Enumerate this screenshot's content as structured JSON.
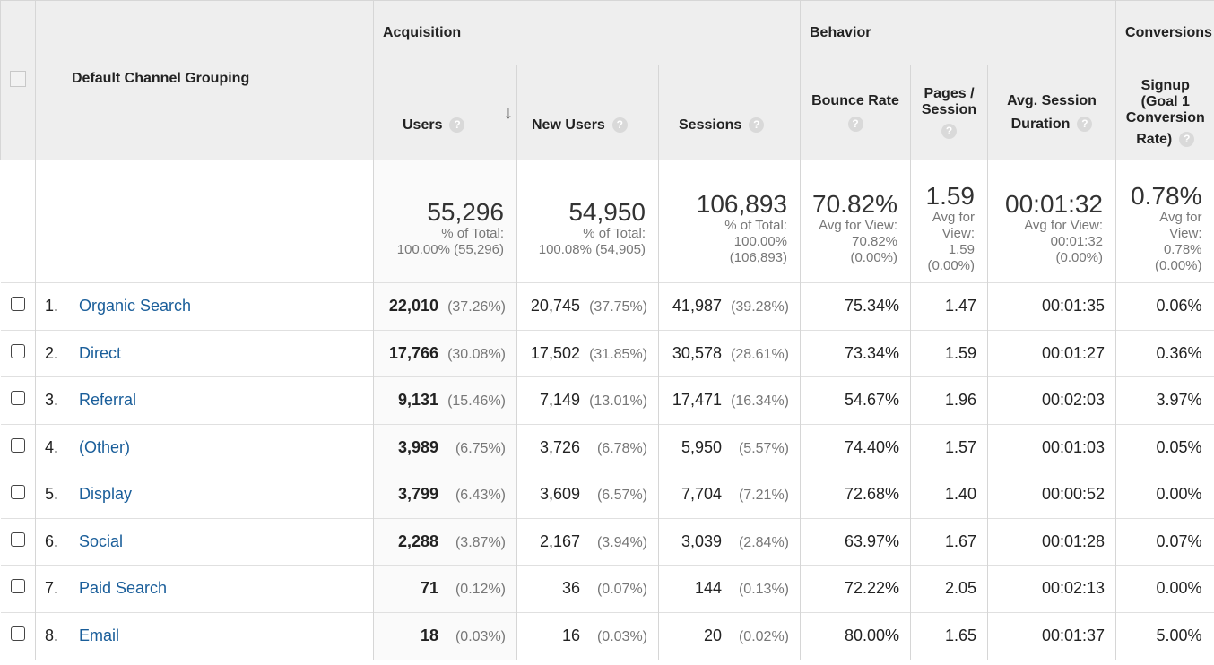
{
  "header": {
    "dimension": "Default Channel Grouping",
    "groups": {
      "acquisition": "Acquisition",
      "behavior": "Behavior",
      "conversions": "Conversions"
    },
    "columns": {
      "users": "Users",
      "new_users": "New Users",
      "sessions": "Sessions",
      "bounce_rate": "Bounce Rate",
      "pages_session_1": "Pages /",
      "pages_session_2": "Session",
      "avg_duration_1": "Avg. Session",
      "avg_duration_2": "Duration",
      "signup_1": "Signup",
      "signup_2": "(Goal 1",
      "signup_3": "Conversion",
      "signup_4": "Rate)"
    },
    "help_icon": "?",
    "sort_icon": "↓"
  },
  "totals": {
    "users": {
      "value": "55,296",
      "l1": "% of Total:",
      "l2": "100.00% (55,296)"
    },
    "new_users": {
      "value": "54,950",
      "l1": "% of Total:",
      "l2": "100.08% (54,905)"
    },
    "sessions": {
      "value": "106,893",
      "l1": "% of Total:",
      "l2": "100.00%",
      "l3": "(106,893)"
    },
    "bounce_rate": {
      "value": "70.82%",
      "l1": "Avg for View:",
      "l2": "70.82%",
      "l3": "(0.00%)"
    },
    "pages_session": {
      "value": "1.59",
      "l1": "Avg for",
      "l2": "View:",
      "l3": "1.59",
      "l4": "(0.00%)"
    },
    "avg_duration": {
      "value": "00:01:32",
      "l1": "Avg for View:",
      "l2": "00:01:32",
      "l3": "(0.00%)"
    },
    "signup": {
      "value": "0.78%",
      "l1": "Avg for",
      "l2": "View:",
      "l3": "0.78%",
      "l4": "(0.00%)"
    }
  },
  "rows": [
    {
      "idx": "1.",
      "channel": "Organic Search",
      "users": "22,010",
      "users_pct": "(37.26%)",
      "new_users": "20,745",
      "new_users_pct": "(37.75%)",
      "sessions": "41,987",
      "sessions_pct": "(39.28%)",
      "bounce": "75.34%",
      "pages": "1.47",
      "duration": "00:01:35",
      "signup": "0.06%"
    },
    {
      "idx": "2.",
      "channel": "Direct",
      "users": "17,766",
      "users_pct": "(30.08%)",
      "new_users": "17,502",
      "new_users_pct": "(31.85%)",
      "sessions": "30,578",
      "sessions_pct": "(28.61%)",
      "bounce": "73.34%",
      "pages": "1.59",
      "duration": "00:01:27",
      "signup": "0.36%"
    },
    {
      "idx": "3.",
      "channel": "Referral",
      "users": "9,131",
      "users_pct": "(15.46%)",
      "new_users": "7,149",
      "new_users_pct": "(13.01%)",
      "sessions": "17,471",
      "sessions_pct": "(16.34%)",
      "bounce": "54.67%",
      "pages": "1.96",
      "duration": "00:02:03",
      "signup": "3.97%"
    },
    {
      "idx": "4.",
      "channel": "(Other)",
      "users": "3,989",
      "users_pct": "(6.75%)",
      "new_users": "3,726",
      "new_users_pct": "(6.78%)",
      "sessions": "5,950",
      "sessions_pct": "(5.57%)",
      "bounce": "74.40%",
      "pages": "1.57",
      "duration": "00:01:03",
      "signup": "0.05%"
    },
    {
      "idx": "5.",
      "channel": "Display",
      "users": "3,799",
      "users_pct": "(6.43%)",
      "new_users": "3,609",
      "new_users_pct": "(6.57%)",
      "sessions": "7,704",
      "sessions_pct": "(7.21%)",
      "bounce": "72.68%",
      "pages": "1.40",
      "duration": "00:00:52",
      "signup": "0.00%"
    },
    {
      "idx": "6.",
      "channel": "Social",
      "users": "2,288",
      "users_pct": "(3.87%)",
      "new_users": "2,167",
      "new_users_pct": "(3.94%)",
      "sessions": "3,039",
      "sessions_pct": "(2.84%)",
      "bounce": "63.97%",
      "pages": "1.67",
      "duration": "00:01:28",
      "signup": "0.07%"
    },
    {
      "idx": "7.",
      "channel": "Paid Search",
      "users": "71",
      "users_pct": "(0.12%)",
      "new_users": "36",
      "new_users_pct": "(0.07%)",
      "sessions": "144",
      "sessions_pct": "(0.13%)",
      "bounce": "72.22%",
      "pages": "2.05",
      "duration": "00:02:13",
      "signup": "0.00%"
    },
    {
      "idx": "8.",
      "channel": "Email",
      "users": "18",
      "users_pct": "(0.03%)",
      "new_users": "16",
      "new_users_pct": "(0.03%)",
      "sessions": "20",
      "sessions_pct": "(0.02%)",
      "bounce": "80.00%",
      "pages": "1.65",
      "duration": "00:01:37",
      "signup": "5.00%"
    }
  ]
}
